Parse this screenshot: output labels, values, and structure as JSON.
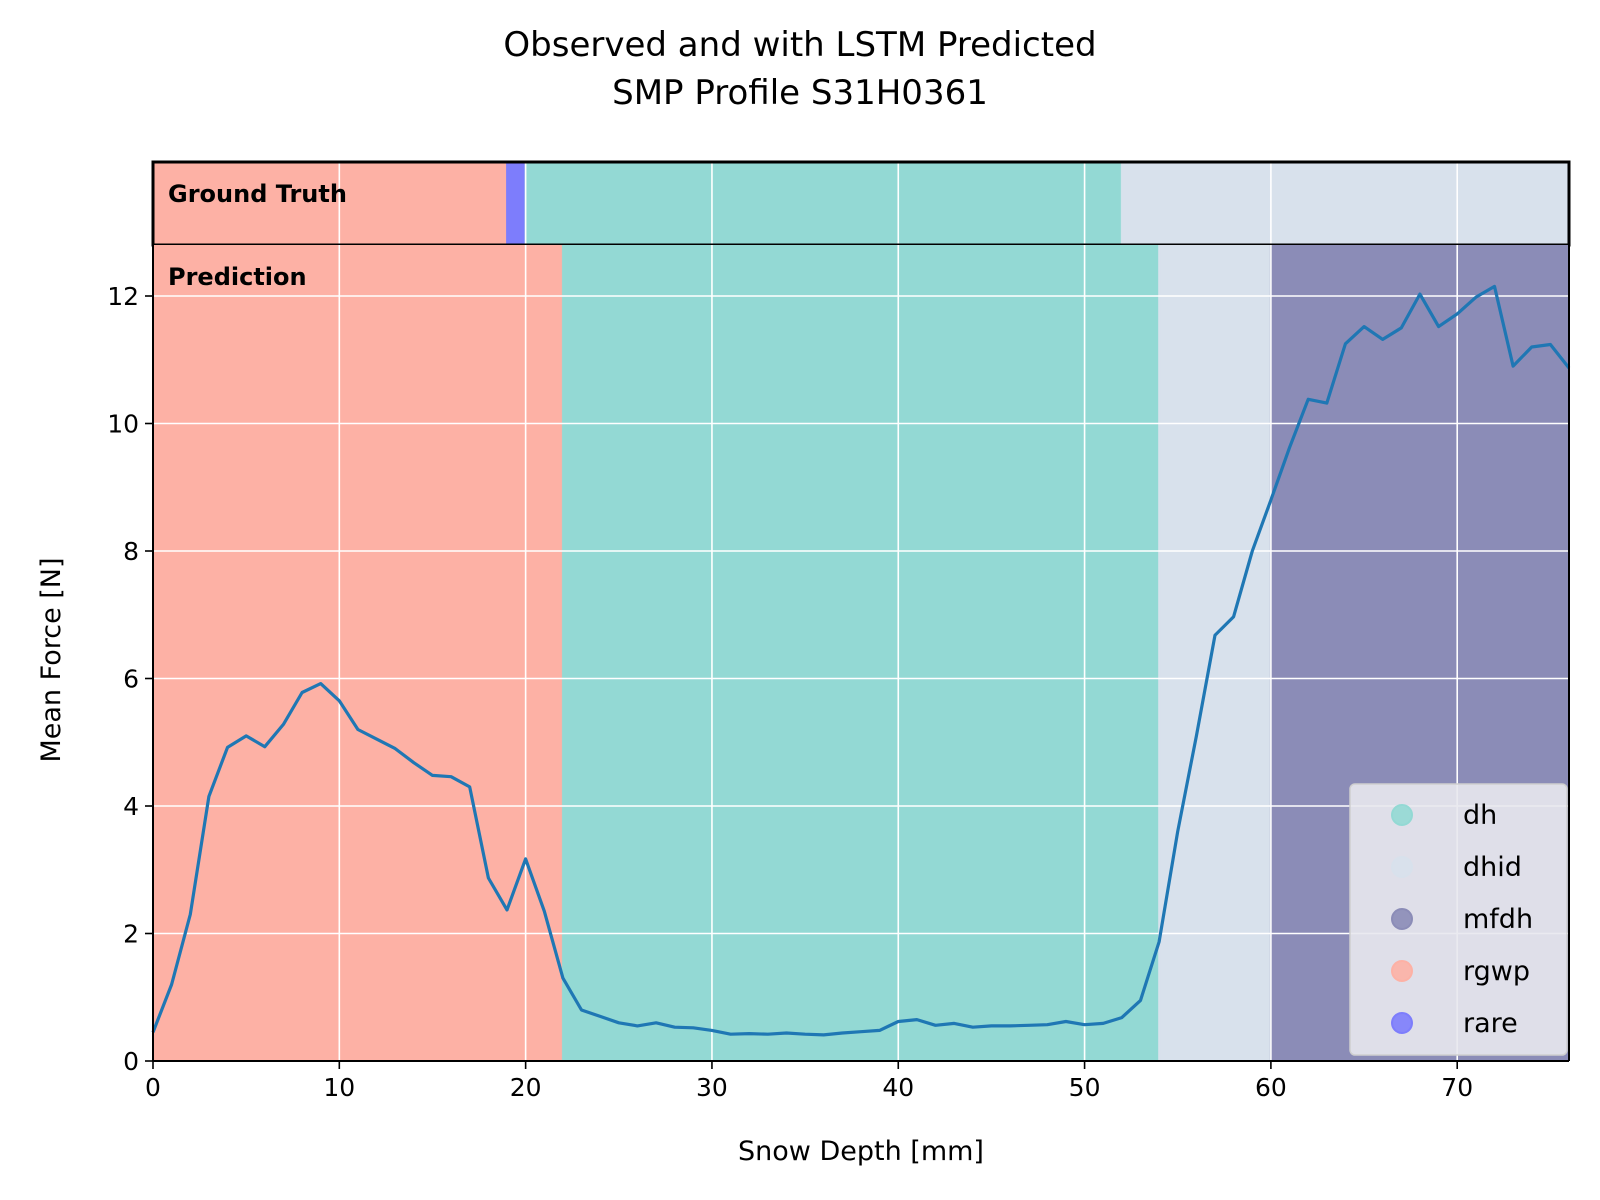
{
  "chart_data": {
    "type": "line",
    "title_lines": [
      "Observed and with LSTM Predicted",
      "SMP Profile S31H0361"
    ],
    "xlabel": "Snow Depth [mm]",
    "ylabel": "Mean Force [N]",
    "xlim": [
      0,
      76
    ],
    "ylim": [
      0,
      12.8
    ],
    "xticks": [
      0,
      10,
      20,
      30,
      40,
      50,
      60,
      70
    ],
    "yticks": [
      0,
      2,
      4,
      6,
      8,
      10,
      12
    ],
    "grid": true,
    "legend_position": "lower-right",
    "ground_truth_label": "Ground Truth",
    "prediction_label": "Prediction",
    "classes": [
      {
        "name": "dh",
        "color": "#93d9d4"
      },
      {
        "name": "dhid",
        "color": "#d8e1ec"
      },
      {
        "name": "mfdh",
        "color": "#8b8cb7"
      },
      {
        "name": "rgwp",
        "color": "#fdb1a5"
      },
      {
        "name": "rare",
        "color": "#7d7dfc"
      }
    ],
    "ground_truth_segments": [
      {
        "class": "rgwp",
        "start": 0,
        "end": 19
      },
      {
        "class": "rare",
        "start": 19,
        "end": 20
      },
      {
        "class": "dh",
        "start": 20,
        "end": 52
      },
      {
        "class": "dhid",
        "start": 52,
        "end": 76
      }
    ],
    "prediction_segments": [
      {
        "class": "rgwp",
        "start": 0,
        "end": 22
      },
      {
        "class": "dh",
        "start": 22,
        "end": 54
      },
      {
        "class": "dhid",
        "start": 54,
        "end": 60
      },
      {
        "class": "mfdh",
        "start": 60,
        "end": 76
      }
    ],
    "series": [
      {
        "color": "#1f77b4",
        "x": [
          0,
          1,
          2,
          3,
          4,
          5,
          6,
          7,
          8,
          9,
          10,
          11,
          12,
          13,
          14,
          15,
          16,
          17,
          18,
          19,
          20,
          21,
          22,
          23,
          24,
          25,
          26,
          27,
          28,
          29,
          30,
          31,
          32,
          33,
          34,
          35,
          36,
          37,
          38,
          39,
          40,
          41,
          42,
          43,
          44,
          45,
          46,
          47,
          48,
          49,
          50,
          51,
          52,
          53,
          54,
          55,
          56,
          57,
          58,
          59,
          60,
          61,
          62,
          63,
          64,
          65,
          66,
          67,
          68,
          69,
          70,
          71,
          72,
          73,
          74,
          75,
          76
        ],
        "y": [
          0.45,
          1.2,
          2.3,
          4.15,
          4.92,
          5.1,
          4.93,
          5.28,
          5.78,
          5.92,
          5.65,
          5.2,
          5.05,
          4.9,
          4.68,
          4.48,
          4.46,
          4.3,
          2.87,
          2.37,
          3.17,
          2.35,
          1.3,
          0.8,
          0.7,
          0.6,
          0.55,
          0.6,
          0.53,
          0.52,
          0.48,
          0.42,
          0.43,
          0.42,
          0.44,
          0.42,
          0.41,
          0.44,
          0.46,
          0.48,
          0.62,
          0.65,
          0.56,
          0.59,
          0.53,
          0.55,
          0.55,
          0.56,
          0.57,
          0.62,
          0.57,
          0.59,
          0.68,
          0.95,
          1.87,
          3.6,
          5.1,
          6.68,
          6.97,
          8.0,
          8.8,
          9.62,
          10.38,
          10.32,
          11.25,
          11.52,
          11.32,
          11.5,
          12.03,
          11.52,
          11.72,
          11.98,
          12.15,
          10.9,
          11.2,
          11.24,
          10.87
        ]
      }
    ]
  }
}
